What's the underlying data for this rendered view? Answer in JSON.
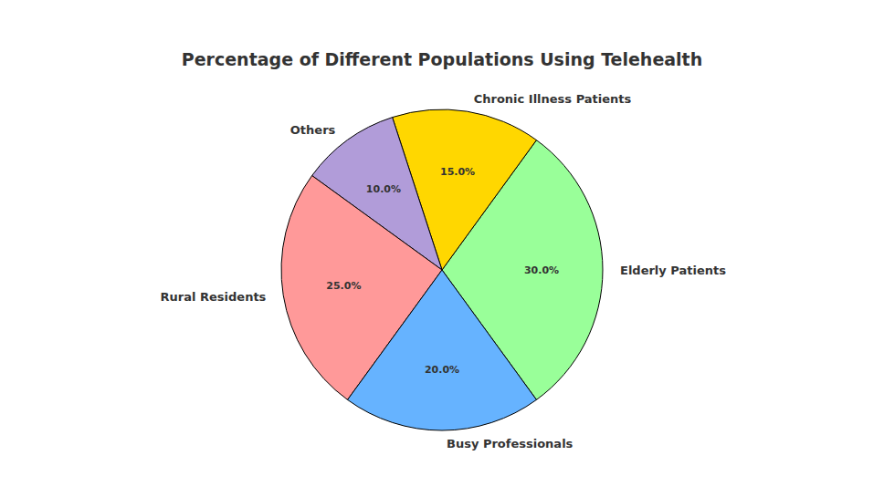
{
  "chart_data": {
    "type": "pie",
    "title": "Percentage of Different Populations Using Telehealth",
    "categories": [
      "Elderly Patients",
      "Chronic Illness Patients",
      "Others",
      "Rural Residents",
      "Busy Professionals"
    ],
    "values": [
      30,
      15,
      10,
      25,
      20
    ],
    "value_labels": [
      "30.0%",
      "15.0%",
      "10.0%",
      "25.0%",
      "20.0%"
    ],
    "colors": [
      "#99ff99",
      "#ffd700",
      "#b19cd9",
      "#ff9999",
      "#66b3ff"
    ],
    "data_labels": true
  }
}
